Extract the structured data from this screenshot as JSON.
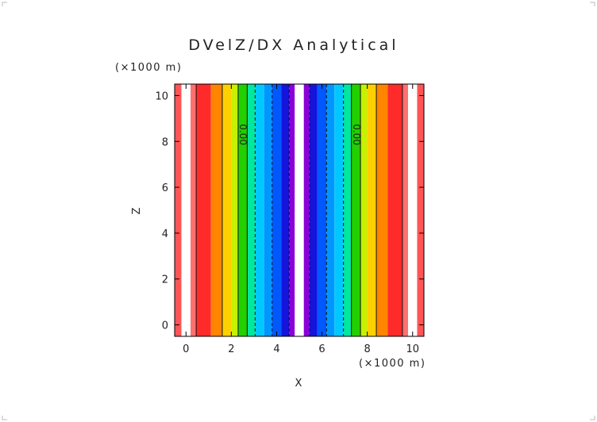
{
  "chart_data": {
    "type": "heatmap",
    "title": "DVelZ/DX Analytical",
    "xlabel": "X",
    "ylabel": "Z",
    "x_unit": "(×1000 m)",
    "y_unit": "(×1000 m)",
    "xlim": [
      -0.5,
      10.5
    ],
    "ylim": [
      -0.5,
      10.5
    ],
    "x_ticks": [
      "0",
      "2",
      "4",
      "6",
      "8",
      "10"
    ],
    "y_ticks": [
      "0",
      "2",
      "4",
      "6",
      "8",
      "10"
    ],
    "x_tick_values": [
      0,
      2,
      4,
      6,
      8,
      10
    ],
    "y_tick_values": [
      0,
      2,
      4,
      6,
      8,
      10
    ],
    "grid": false,
    "colormap": "rainbow (red high, blue/violet low)",
    "bands": [
      {
        "x0": -0.5,
        "x1": -0.2,
        "color": "#ff5555"
      },
      {
        "x0": -0.2,
        "x1": 0.2,
        "color": "#ffffff"
      },
      {
        "x0": 0.2,
        "x1": 0.45,
        "color": "#ff7070"
      },
      {
        "x0": 0.45,
        "x1": 1.1,
        "color": "#ff2a2a"
      },
      {
        "x0": 1.1,
        "x1": 1.6,
        "color": "#ff8400"
      },
      {
        "x0": 1.6,
        "x1": 2.0,
        "color": "#ffd000"
      },
      {
        "x0": 2.0,
        "x1": 2.3,
        "color": "#c8f000"
      },
      {
        "x0": 2.3,
        "x1": 2.7,
        "color": "#22d000"
      },
      {
        "x0": 2.7,
        "x1": 3.05,
        "color": "#00e8a0"
      },
      {
        "x0": 3.05,
        "x1": 3.45,
        "color": "#00c8ff"
      },
      {
        "x0": 3.45,
        "x1": 3.8,
        "color": "#0096ff"
      },
      {
        "x0": 3.8,
        "x1": 4.2,
        "color": "#0058ff"
      },
      {
        "x0": 4.2,
        "x1": 4.55,
        "color": "#1414dc"
      },
      {
        "x0": 4.55,
        "x1": 4.8,
        "color": "#8a00d8"
      },
      {
        "x0": 4.8,
        "x1": 5.2,
        "color": "#ffffff"
      },
      {
        "x0": 5.2,
        "x1": 5.45,
        "color": "#8a00d8"
      },
      {
        "x0": 5.45,
        "x1": 5.8,
        "color": "#1414dc"
      },
      {
        "x0": 5.8,
        "x1": 6.2,
        "color": "#0058ff"
      },
      {
        "x0": 6.2,
        "x1": 6.55,
        "color": "#0096ff"
      },
      {
        "x0": 6.55,
        "x1": 6.95,
        "color": "#00c8ff"
      },
      {
        "x0": 6.95,
        "x1": 7.3,
        "color": "#00e8a0"
      },
      {
        "x0": 7.3,
        "x1": 7.7,
        "color": "#22d000"
      },
      {
        "x0": 7.7,
        "x1": 8.0,
        "color": "#c8f000"
      },
      {
        "x0": 8.0,
        "x1": 8.4,
        "color": "#ffd000"
      },
      {
        "x0": 8.4,
        "x1": 8.9,
        "color": "#ff8400"
      },
      {
        "x0": 8.9,
        "x1": 9.55,
        "color": "#ff2a2a"
      },
      {
        "x0": 9.55,
        "x1": 9.8,
        "color": "#ff7070"
      },
      {
        "x0": 9.8,
        "x1": 10.2,
        "color": "#ffffff"
      },
      {
        "x0": 10.2,
        "x1": 10.5,
        "color": "#ff5555"
      }
    ],
    "contour_lines": [
      {
        "x": 0.45,
        "style": "solid"
      },
      {
        "x": 1.6,
        "style": "solid"
      },
      {
        "x": 2.3,
        "style": "solid"
      },
      {
        "x": 2.7,
        "style": "solid"
      },
      {
        "x": 3.05,
        "style": "dashed"
      },
      {
        "x": 3.8,
        "style": "dashed"
      },
      {
        "x": 4.55,
        "style": "dashed"
      },
      {
        "x": 5.45,
        "style": "dashed"
      },
      {
        "x": 6.2,
        "style": "dashed"
      },
      {
        "x": 6.95,
        "style": "dashed"
      },
      {
        "x": 7.3,
        "style": "solid"
      },
      {
        "x": 7.7,
        "style": "solid"
      },
      {
        "x": 8.4,
        "style": "solid"
      },
      {
        "x": 9.55,
        "style": "solid"
      }
    ],
    "contour_labels": [
      {
        "text": "0.00",
        "x": 2.5,
        "y": 8.3
      },
      {
        "text": "0.00",
        "x": 7.5,
        "y": 8.3
      }
    ]
  }
}
